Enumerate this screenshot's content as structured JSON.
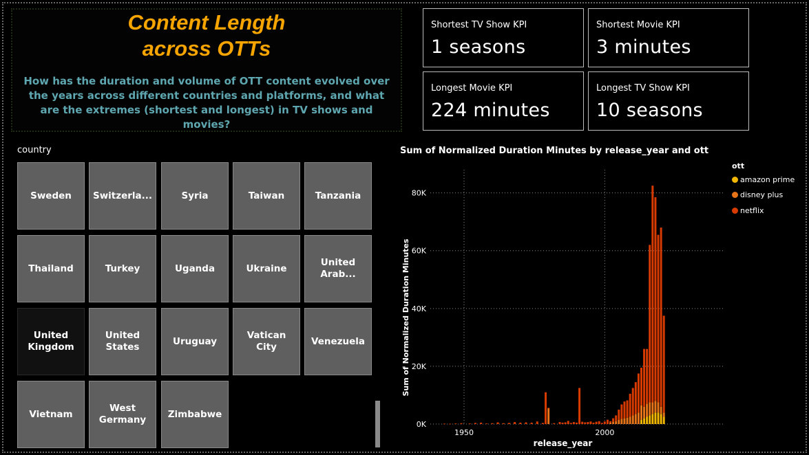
{
  "header": {
    "title_line1": "Content Length",
    "title_line2": "across OTTs",
    "question": "How has the duration and volume of OTT content evolved over the years across different countries and platforms, and what are the extremes (shortest and longest) in TV shows and movies?"
  },
  "kpis": [
    {
      "label": "Shortest TV Show KPI",
      "value": "1 seasons"
    },
    {
      "label": "Shortest Movie KPI",
      "value": "3 minutes"
    },
    {
      "label": "Longest Movie KPI",
      "value": "224 minutes"
    },
    {
      "label": "Longest TV Show KPI",
      "value": "10 seasons"
    }
  ],
  "country_slicer": {
    "label": "country",
    "tiles": [
      {
        "label": "Sweden"
      },
      {
        "label": "Switzerla..."
      },
      {
        "label": "Syria"
      },
      {
        "label": "Taiwan"
      },
      {
        "label": "Tanzania"
      },
      {
        "label": "Thailand"
      },
      {
        "label": "Turkey"
      },
      {
        "label": "Uganda"
      },
      {
        "label": "Ukraine"
      },
      {
        "label": "United Arab..."
      },
      {
        "label": "United Kingdom",
        "selected": true
      },
      {
        "label": "United States"
      },
      {
        "label": "Uruguay"
      },
      {
        "label": "Vatican City"
      },
      {
        "label": "Venezuela"
      },
      {
        "label": "Vietnam"
      },
      {
        "label": "West Germany"
      },
      {
        "label": "Zimbabwe"
      }
    ]
  },
  "chart_title": "Sum of Normalized Duration Minutes by release_year and ott",
  "legend": {
    "title": "ott",
    "items": [
      {
        "name": "amazon prime",
        "color": "#f2b705"
      },
      {
        "name": "disney plus",
        "color": "#e8741a"
      },
      {
        "name": "netflix",
        "color": "#d83b01"
      }
    ]
  },
  "chart_data": {
    "type": "bar",
    "stacked": true,
    "title": "Sum of Normalized Duration Minutes by release_year and ott",
    "xlabel": "release_year",
    "ylabel": "Sum of Normalized Duration Minutes",
    "xlim": [
      1938,
      2042
    ],
    "ylim": [
      0,
      88000
    ],
    "x_ticks": [
      1950,
      2000
    ],
    "y_ticks": [
      {
        "value": 0,
        "label": "0K"
      },
      {
        "value": 20000,
        "label": "20K"
      },
      {
        "value": 40000,
        "label": "40K"
      },
      {
        "value": 60000,
        "label": "60K"
      },
      {
        "value": 80000,
        "label": "80K"
      }
    ],
    "grid": true,
    "legend_position": "top-right",
    "x": [
      1943,
      1945,
      1947,
      1949,
      1952,
      1954,
      1956,
      1958,
      1960,
      1962,
      1964,
      1966,
      1968,
      1970,
      1972,
      1974,
      1976,
      1978,
      1979,
      1980,
      1982,
      1984,
      1985,
      1986,
      1987,
      1988,
      1989,
      1990,
      1991,
      1992,
      1993,
      1994,
      1995,
      1996,
      1997,
      1998,
      1999,
      2000,
      2001,
      2002,
      2003,
      2004,
      2005,
      2006,
      2007,
      2008,
      2009,
      2010,
      2011,
      2012,
      2013,
      2014,
      2015,
      2016,
      2017,
      2018,
      2019,
      2020,
      2021
    ],
    "series": [
      {
        "name": "amazon prime",
        "values": [
          0,
          0,
          0,
          0,
          0,
          0,
          0,
          0,
          0,
          0,
          0,
          0,
          0,
          0,
          0,
          0,
          0,
          0,
          0,
          0,
          0,
          0,
          0,
          0,
          0,
          0,
          0,
          0,
          0,
          0,
          0,
          0,
          0,
          0,
          0,
          0,
          0,
          0,
          0,
          0,
          0,
          0,
          0,
          0,
          0,
          0,
          0,
          0,
          0,
          0,
          1500,
          2000,
          2500,
          3000,
          3500,
          4000,
          4000,
          3500,
          2500
        ]
      },
      {
        "name": "disney plus",
        "values": [
          0,
          0,
          0,
          0,
          0,
          0,
          0,
          0,
          0,
          0,
          0,
          0,
          0,
          0,
          0,
          0,
          0,
          0,
          0,
          5500,
          0,
          0,
          0,
          0,
          0,
          0,
          0,
          0,
          0,
          0,
          0,
          0,
          0,
          0,
          0,
          0,
          0,
          0,
          0,
          500,
          800,
          1000,
          1500,
          1800,
          2000,
          2200,
          2500,
          3000,
          3500,
          4000,
          5000,
          4000,
          4500,
          4500,
          4000,
          4000,
          3500,
          2500,
          1500
        ]
      },
      {
        "name": "netflix",
        "values": [
          150,
          100,
          200,
          300,
          200,
          400,
          500,
          200,
          300,
          600,
          300,
          400,
          700,
          500,
          600,
          500,
          900,
          400,
          11000,
          100,
          300,
          700,
          500,
          600,
          1100,
          400,
          700,
          500,
          12500,
          800,
          600,
          700,
          900,
          500,
          800,
          1000,
          400,
          900,
          1500,
          500,
          1200,
          2000,
          3500,
          5000,
          5800,
          6000,
          8000,
          9500,
          11000,
          13500,
          13000,
          20000,
          19000,
          54500,
          75000,
          70500,
          58000,
          62000,
          33500
        ]
      }
    ]
  }
}
